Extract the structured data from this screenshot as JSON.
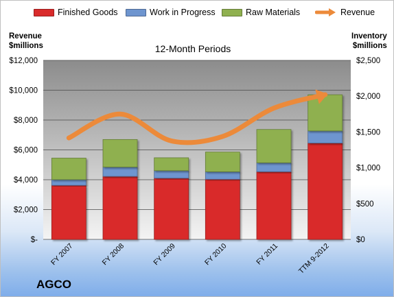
{
  "company": "AGCO",
  "chart_data": {
    "type": "bar",
    "stacked": true,
    "subtitle": "12-Month Periods",
    "categories": [
      "FY 2007",
      "FY 2008",
      "FY 2009",
      "FY 2010",
      "FY 2011",
      "TTM 9-2012"
    ],
    "series": [
      {
        "name": "Finished Goods",
        "axis": "right",
        "color": "#d92b2b",
        "values": [
          755,
          880,
          855,
          840,
          945,
          1345
        ]
      },
      {
        "name": "Work in Progress",
        "axis": "right",
        "color": "#6e95cf",
        "values": [
          80,
          130,
          105,
          105,
          125,
          170
        ]
      },
      {
        "name": "Raw Materials",
        "axis": "right",
        "color": "#8fb04f",
        "values": [
          300,
          385,
          180,
          275,
          465,
          505
        ]
      },
      {
        "name": "Revenue",
        "type": "line",
        "axis": "left",
        "color": "#ec8a3a",
        "values": [
          6800,
          8400,
          6600,
          6900,
          8800,
          9700
        ]
      }
    ],
    "ylabel_left": "Revenue\n$millions",
    "ylabel_right": "Inventory\n$millions",
    "ylim_left": [
      0,
      12000
    ],
    "ylim_right": [
      0,
      2500
    ],
    "yticks_left": [
      "$-",
      "$2,000",
      "$4,000",
      "$6,000",
      "$8,000",
      "$10,000",
      "$12,000"
    ],
    "yticks_right": [
      "$0",
      "$500",
      "$1,000",
      "$1,500",
      "$2,000",
      "$2,500"
    ],
    "grid": true,
    "legend_position": "top"
  }
}
